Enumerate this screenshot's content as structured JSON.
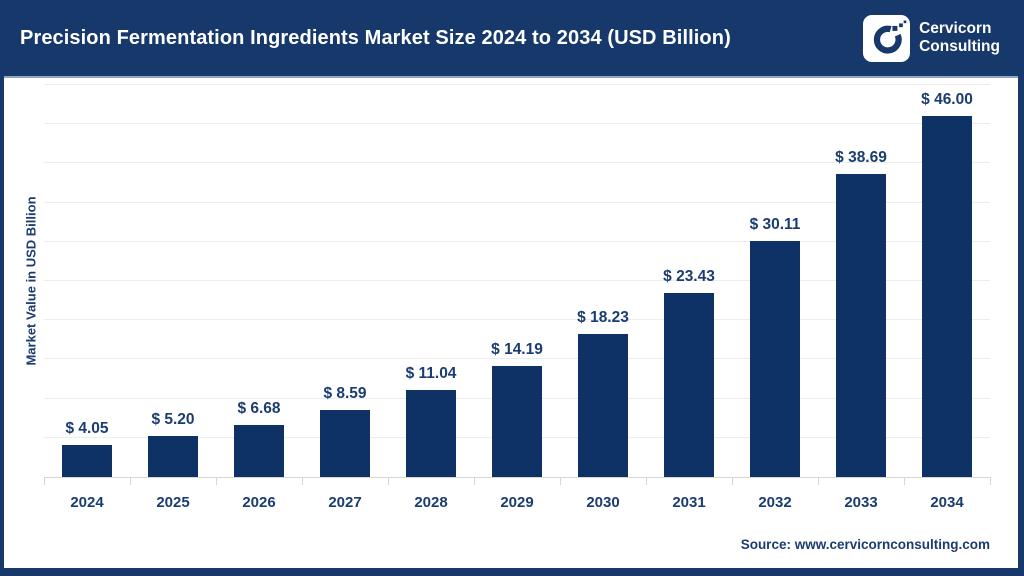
{
  "header": {
    "title": "Precision Fermentation Ingredients Market Size 2024 to 2034 (USD Billion)",
    "logo": {
      "icon": "cervicorn-c-logo",
      "line1": "Cervicorn",
      "line2": "Consulting"
    }
  },
  "chart_data": {
    "type": "bar",
    "title": "Precision Fermentation Ingredients Market Size 2024 to 2034 (USD Billion)",
    "categories": [
      "2024",
      "2025",
      "2026",
      "2027",
      "2028",
      "2029",
      "2030",
      "2031",
      "2032",
      "2033",
      "2034"
    ],
    "values": [
      4.05,
      5.2,
      6.68,
      8.59,
      11.04,
      14.19,
      18.23,
      23.43,
      30.11,
      38.69,
      46.0
    ],
    "value_labels": [
      "$ 4.05",
      "$ 5.20",
      "$ 6.68",
      "$ 8.59",
      "$ 11.04",
      "$ 14.19",
      "$ 18.23",
      "$ 23.43",
      "$ 30.11",
      "$ 38.69",
      "$ 46.00"
    ],
    "xlabel": "",
    "ylabel": "Market Value in USD Billion",
    "ylim": [
      0,
      50
    ],
    "gridline_step": 5,
    "grid": "horizontal",
    "legend": "none",
    "bar_color": "#0e3166"
  },
  "footer": {
    "source": "Source: www.cervicornconsulting.com"
  },
  "colors": {
    "header_navy": "#16386b",
    "bar_navy": "#0e3166",
    "text_navy": "#1b3c70",
    "gridline": "#ededed",
    "axis": "#d6d6d6",
    "white": "#ffffff"
  }
}
